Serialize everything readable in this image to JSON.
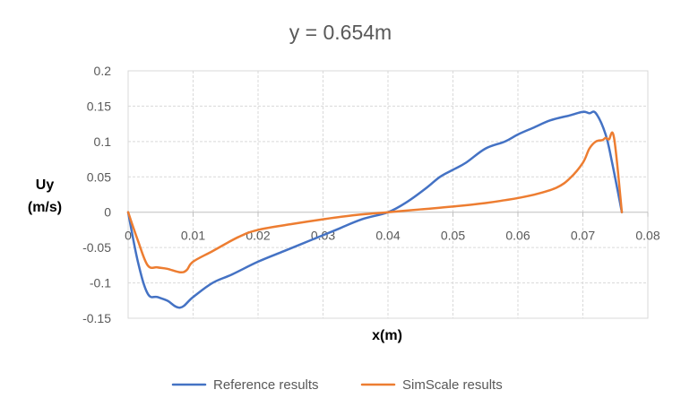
{
  "chart_data": {
    "type": "line",
    "title": "y = 0.654m",
    "xlabel": "x(m)",
    "ylabel_lines": [
      "Uy",
      "(m/s)"
    ],
    "xlim": [
      0,
      0.08
    ],
    "ylim": [
      -0.15,
      0.2
    ],
    "x_ticks": [
      0,
      0.01,
      0.02,
      0.03,
      0.04,
      0.05,
      0.06,
      0.07,
      0.08
    ],
    "x_tick_labels": [
      "0",
      "0.01",
      "0.02",
      "0.03",
      "0.04",
      "0.05",
      "0.06",
      "0.07",
      "0.08"
    ],
    "y_ticks": [
      -0.15,
      -0.1,
      -0.05,
      0,
      0.05,
      0.1,
      0.15,
      0.2
    ],
    "y_tick_labels": [
      "-0.15",
      "-0.1",
      "-0.05",
      "0",
      "0.05",
      "0.1",
      "0.15",
      "0.2"
    ],
    "grid": true,
    "legend_position": "bottom",
    "series": [
      {
        "name": "Reference results",
        "color": "#4472C4",
        "x": [
          0,
          0.0015,
          0.003,
          0.0045,
          0.006,
          0.008,
          0.01,
          0.013,
          0.016,
          0.02,
          0.024,
          0.028,
          0.032,
          0.036,
          0.04,
          0.043,
          0.046,
          0.048,
          0.05,
          0.052,
          0.055,
          0.058,
          0.06,
          0.0625,
          0.065,
          0.068,
          0.07,
          0.071,
          0.072,
          0.0735,
          0.0745,
          0.076
        ],
        "y": [
          0,
          -0.07,
          -0.115,
          -0.12,
          -0.125,
          -0.135,
          -0.12,
          -0.1,
          -0.088,
          -0.07,
          -0.055,
          -0.04,
          -0.025,
          -0.01,
          0,
          0.015,
          0.035,
          0.05,
          0.06,
          0.07,
          0.09,
          0.1,
          0.11,
          0.12,
          0.13,
          0.137,
          0.142,
          0.14,
          0.14,
          0.11,
          0.07,
          0
        ]
      },
      {
        "name": "SimScale results",
        "color": "#ED7D31",
        "x": [
          0,
          0.0015,
          0.003,
          0.0045,
          0.006,
          0.008,
          0.009,
          0.01,
          0.013,
          0.017,
          0.02,
          0.025,
          0.03,
          0.035,
          0.04,
          0.045,
          0.05,
          0.055,
          0.058,
          0.06,
          0.063,
          0.066,
          0.068,
          0.07,
          0.071,
          0.072,
          0.073,
          0.0735,
          0.074,
          0.0748,
          0.076
        ],
        "y": [
          0,
          -0.04,
          -0.075,
          -0.078,
          -0.08,
          -0.085,
          -0.082,
          -0.07,
          -0.055,
          -0.035,
          -0.025,
          -0.017,
          -0.01,
          -0.004,
          0,
          0.004,
          0.008,
          0.013,
          0.017,
          0.02,
          0.026,
          0.035,
          0.048,
          0.07,
          0.09,
          0.1,
          0.102,
          0.105,
          0.103,
          0.105,
          0
        ]
      }
    ]
  }
}
